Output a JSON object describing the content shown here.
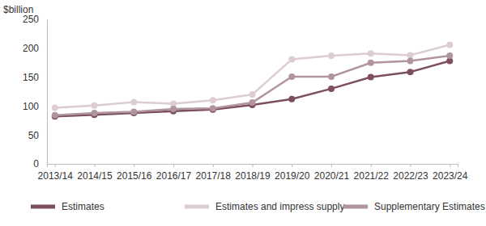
{
  "chart_data": {
    "type": "line",
    "y_label": "$billion",
    "categories": [
      "2013/14",
      "2014/15",
      "2015/16",
      "2016/17",
      "2017/18",
      "2018/19",
      "2019/20",
      "2020/21",
      "2021/22",
      "2022/23",
      "2023/24"
    ],
    "series": [
      {
        "name": "Estimates",
        "color": "#7d4e5b",
        "marker": "circle",
        "values": [
          82,
          85,
          88,
          91,
          94,
          102,
          112,
          130,
          150,
          159,
          178
        ]
      },
      {
        "name": "Estimates and impress supply",
        "color": "#dccdd1",
        "marker": "circle",
        "values": [
          97,
          101,
          107,
          104,
          110,
          120,
          181,
          187,
          191,
          188,
          206
        ]
      },
      {
        "name": "Supplementary Estimates",
        "color": "#b0959c",
        "marker": "circle",
        "values": [
          84,
          88,
          90,
          95,
          96,
          106,
          151,
          151,
          175,
          178,
          187
        ]
      }
    ],
    "ylim": [
      0,
      250
    ],
    "yticks": [
      0,
      50,
      100,
      150,
      200,
      250
    ],
    "grid": false,
    "legend": "bottom"
  }
}
